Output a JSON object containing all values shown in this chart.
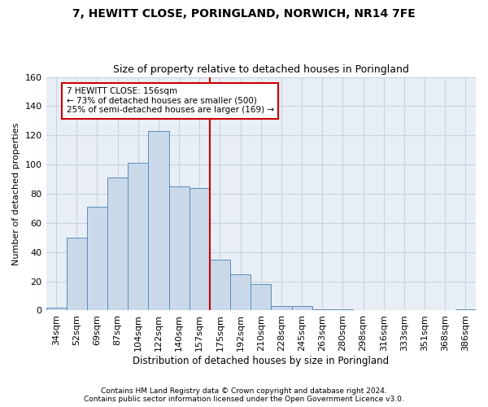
{
  "title": "7, HEWITT CLOSE, PORINGLAND, NORWICH, NR14 7FE",
  "subtitle": "Size of property relative to detached houses in Poringland",
  "xlabel": "Distribution of detached houses by size in Poringland",
  "ylabel": "Number of detached properties",
  "bar_labels": [
    "34sqm",
    "52sqm",
    "69sqm",
    "87sqm",
    "104sqm",
    "122sqm",
    "140sqm",
    "157sqm",
    "175sqm",
    "192sqm",
    "210sqm",
    "228sqm",
    "245sqm",
    "263sqm",
    "280sqm",
    "298sqm",
    "316sqm",
    "333sqm",
    "351sqm",
    "368sqm",
    "386sqm"
  ],
  "bar_values": [
    2,
    50,
    71,
    91,
    101,
    123,
    85,
    84,
    35,
    25,
    18,
    3,
    3,
    1,
    1,
    0,
    0,
    0,
    0,
    0,
    1
  ],
  "bar_color": "#c9d9ea",
  "bar_edge_color": "#5b8db8",
  "vline_color": "#cc0000",
  "annotation_text": "7 HEWITT CLOSE: 156sqm\n← 73% of detached houses are smaller (500)\n25% of semi-detached houses are larger (169) →",
  "annotation_box_color": "#ffffff",
  "annotation_box_edge": "#cc0000",
  "ylim": [
    0,
    160
  ],
  "yticks": [
    0,
    20,
    40,
    60,
    80,
    100,
    120,
    140,
    160
  ],
  "grid_color": "#c8d4e0",
  "background_color": "#e8eef5",
  "footer1": "Contains HM Land Registry data © Crown copyright and database right 2024.",
  "footer2": "Contains public sector information licensed under the Open Government Licence v3.0."
}
